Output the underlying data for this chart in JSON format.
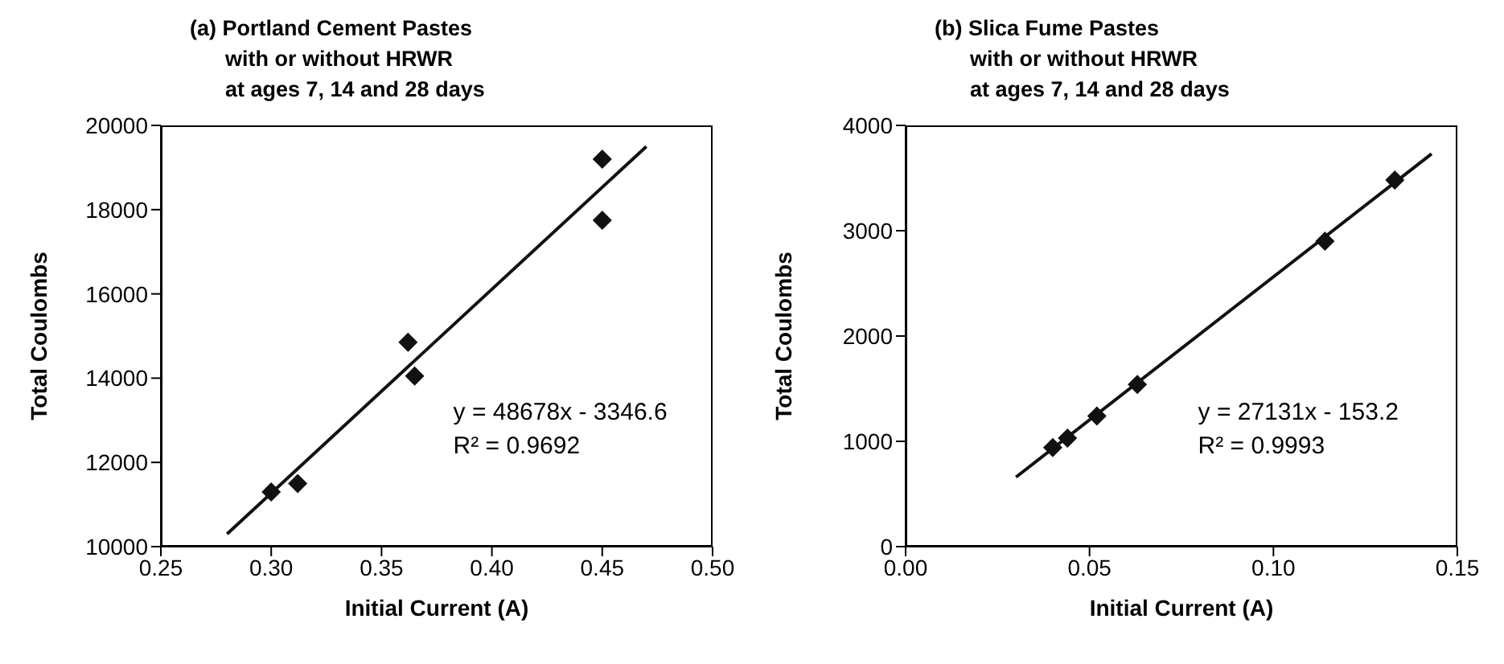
{
  "chart_data": [
    {
      "type": "scatter",
      "title": "(a) Portland Cement Pastes\nwith or without HRWR\nat ages 7, 14 and 28 days",
      "xlabel": "Initial Current (A)",
      "ylabel": "Total Coulombs",
      "x": [
        0.3,
        0.312,
        0.362,
        0.365,
        0.45,
        0.45
      ],
      "xlim": [
        0.25,
        0.5
      ],
      "xticks": [
        {
          "value": 0.25,
          "label": "0.25"
        },
        {
          "value": 0.3,
          "label": "0.30"
        },
        {
          "value": 0.35,
          "label": "0.35"
        },
        {
          "value": 0.4,
          "label": "0.40"
        },
        {
          "value": 0.45,
          "label": "0.45"
        },
        {
          "value": 0.5,
          "label": "0.50"
        }
      ],
      "ylim": [
        10000,
        20000
      ],
      "yticks": [
        10000,
        12000,
        14000,
        16000,
        18000,
        20000
      ],
      "marker": "diamond",
      "annotations": [
        "y = 48678x - 3346.6",
        "R² = 0.9692"
      ],
      "series": [
        {
          "color": "#111111",
          "values": [
            11300,
            11500,
            14850,
            14050,
            19200,
            17750
          ]
        },
        {
          "type": "line",
          "color": "#111111",
          "line_style": "solid",
          "marker": "none",
          "x": [
            0.28,
            0.47
          ],
          "values": [
            10300,
            19500
          ]
        }
      ]
    },
    {
      "type": "scatter",
      "title": "(b) Slica Fume Pastes\nwith or without HRWR\nat ages 7, 14 and 28 days",
      "xlabel": "Initial Current (A)",
      "ylabel": "Total Coulombs",
      "x": [
        0.04,
        0.044,
        0.052,
        0.063,
        0.114,
        0.133
      ],
      "xlim": [
        0,
        0.15
      ],
      "xticks": [
        {
          "value": 0,
          "label": "0.00"
        },
        {
          "value": 0.05,
          "label": "0.05"
        },
        {
          "value": 0.1,
          "label": "0.10"
        },
        {
          "value": 0.15,
          "label": "0.15"
        }
      ],
      "ylim": [
        0,
        4000
      ],
      "yticks": [
        0,
        1000,
        2000,
        3000,
        4000
      ],
      "marker": "diamond",
      "annotations": [
        "y = 27131x - 153.2",
        "R² = 0.9993"
      ],
      "series": [
        {
          "color": "#111111",
          "values": [
            940,
            1030,
            1240,
            1540,
            2900,
            3480
          ]
        },
        {
          "type": "line",
          "color": "#111111",
          "line_style": "solid",
          "marker": "none",
          "x": [
            0.03,
            0.143
          ],
          "values": [
            660,
            3730
          ]
        }
      ]
    }
  ]
}
